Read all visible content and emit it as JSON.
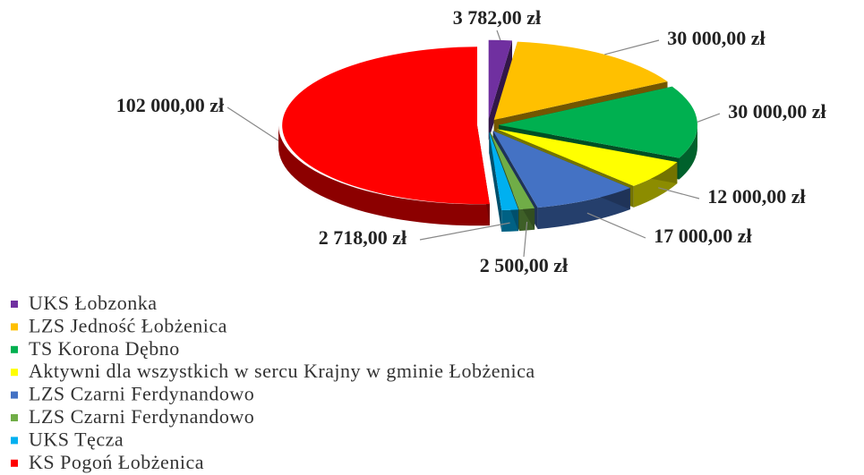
{
  "chart_data": {
    "type": "pie",
    "categories": [
      "UKS Łobzonka",
      "LZS Jedność Łobżenica",
      "TS Korona Dębno",
      "Aktywni dla wszystkich w sercu Krajny w gminie Łobżenica",
      "LZS Czarni Ferdynandowo",
      "LZS Czarni Ferdynandowo",
      "UKS Tęcza",
      "KS Pogoń Łobżenica"
    ],
    "values": [
      3782,
      30000,
      30000,
      12000,
      17000,
      2500,
      2718,
      102000
    ],
    "value_labels": [
      "3 782,00 zł",
      "30 000,00 zł",
      "30 000,00 zł",
      "12 000,00 zł",
      "17 000,00 zł",
      "2 500,00 zł",
      "2 718,00 zł",
      "102 000,00 zł"
    ],
    "colors": [
      "#7030a0",
      "#ffc000",
      "#00b050",
      "#ffff00",
      "#4472c4",
      "#70ad47",
      "#00b0f0",
      "#ff0000"
    ],
    "legend": "bottom-left"
  }
}
